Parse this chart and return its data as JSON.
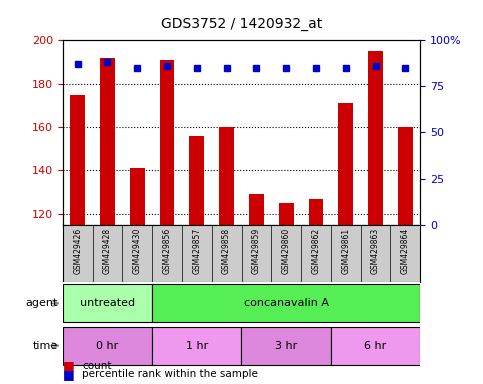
{
  "title": "GDS3752 / 1420932_at",
  "samples": [
    "GSM429426",
    "GSM429428",
    "GSM429430",
    "GSM429856",
    "GSM429857",
    "GSM429858",
    "GSM429859",
    "GSM429860",
    "GSM429862",
    "GSM429861",
    "GSM429863",
    "GSM429864"
  ],
  "counts": [
    175,
    192,
    141,
    191,
    156,
    160,
    129,
    125,
    127,
    171,
    195,
    160
  ],
  "percentile_ranks": [
    87,
    88,
    85,
    86,
    85,
    85,
    85,
    85,
    85,
    85,
    86,
    85
  ],
  "ylim_left": [
    115,
    200
  ],
  "ylim_right": [
    0,
    100
  ],
  "yticks_left": [
    120,
    140,
    160,
    180,
    200
  ],
  "yticks_right": [
    0,
    25,
    50,
    75,
    100
  ],
  "bar_color": "#cc0000",
  "dot_color": "#0000cc",
  "agent_groups": [
    {
      "label": "untreated",
      "start": 0,
      "end": 3,
      "color": "#aaffaa"
    },
    {
      "label": "concanavalin A",
      "start": 3,
      "end": 12,
      "color": "#55ee55"
    }
  ],
  "time_groups": [
    {
      "label": "0 hr",
      "start": 0,
      "end": 3,
      "color": "#dd88dd"
    },
    {
      "label": "1 hr",
      "start": 3,
      "end": 6,
      "color": "#ee99ee"
    },
    {
      "label": "3 hr",
      "start": 6,
      "end": 9,
      "color": "#dd88dd"
    },
    {
      "label": "6 hr",
      "start": 9,
      "end": 12,
      "color": "#ee99ee"
    }
  ],
  "background_color": "#ffffff",
  "bar_width": 0.5,
  "ylabel_left_color": "#cc0000",
  "ylabel_right_color": "#0000cc",
  "label_bg_color": "#cccccc",
  "n_samples": 12
}
